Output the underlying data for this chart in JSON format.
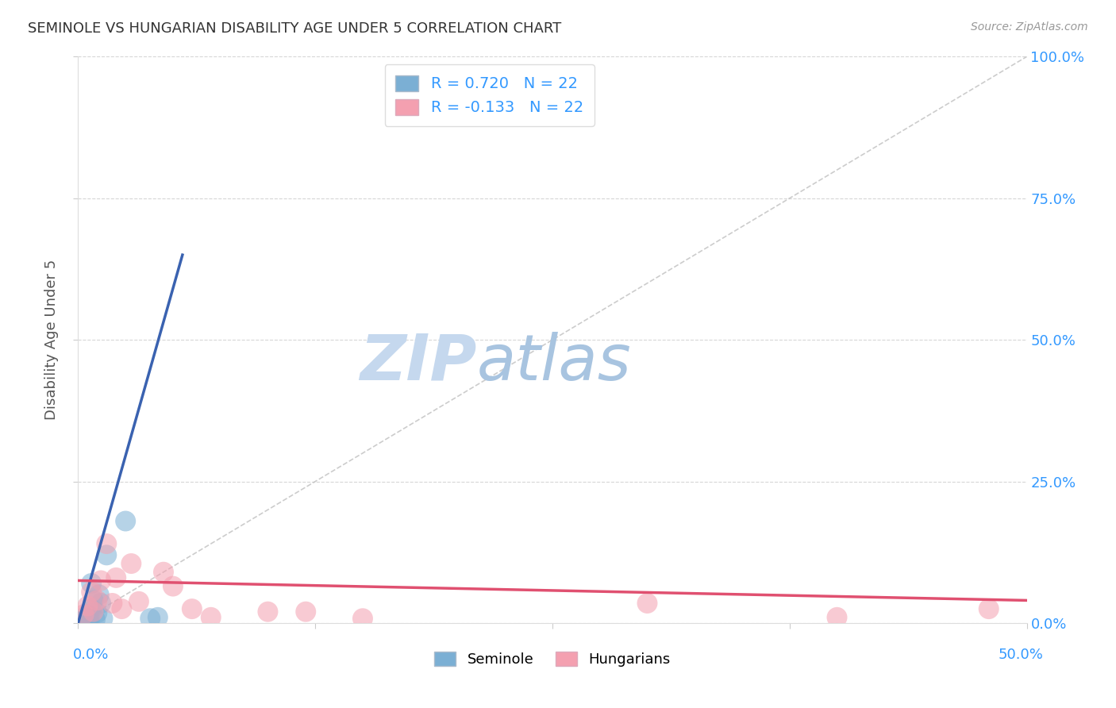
{
  "title": "SEMINOLE VS HUNGARIAN DISABILITY AGE UNDER 5 CORRELATION CHART",
  "source": "Source: ZipAtlas.com",
  "ylabel": "Disability Age Under 5",
  "ytick_values": [
    0,
    25,
    50,
    75,
    100
  ],
  "xlim": [
    0,
    50
  ],
  "ylim": [
    0,
    100
  ],
  "seminole_R": 0.72,
  "seminole_N": 22,
  "hungarian_R": -0.133,
  "hungarian_N": 22,
  "seminole_color": "#7BAFD4",
  "hungarian_color": "#F4A0B0",
  "seminole_line_color": "#3A62B0",
  "hungarian_line_color": "#E05070",
  "diagonal_color": "#C0C0C0",
  "background_color": "#FFFFFF",
  "grid_color": "#CCCCCC",
  "title_color": "#333333",
  "axis_label_color": "#3399FF",
  "watermark_zip_color": "#C8D8F0",
  "watermark_atlas_color": "#A8C8E8",
  "seminole_scatter_x": [
    0.2,
    0.3,
    0.4,
    0.5,
    0.5,
    0.6,
    0.7,
    0.8,
    0.9,
    1.0,
    1.1,
    1.2,
    1.3,
    0.3,
    0.4,
    0.5,
    0.6,
    0.7,
    1.5,
    2.5,
    3.8,
    4.2
  ],
  "seminole_scatter_y": [
    0.3,
    0.5,
    0.4,
    0.8,
    1.5,
    1.2,
    2.5,
    4.0,
    0.6,
    1.8,
    5.0,
    3.5,
    0.8,
    0.3,
    0.4,
    0.6,
    0.5,
    7.0,
    12.0,
    18.0,
    0.8,
    1.0
  ],
  "hungarian_scatter_x": [
    0.3,
    0.5,
    0.7,
    0.8,
    1.0,
    1.2,
    1.5,
    1.8,
    2.0,
    2.3,
    2.8,
    3.2,
    4.5,
    5.0,
    6.0,
    7.0,
    10.0,
    12.0,
    15.0,
    30.0,
    40.0,
    48.0
  ],
  "hungarian_scatter_y": [
    1.5,
    3.0,
    5.5,
    2.0,
    4.0,
    7.5,
    14.0,
    3.5,
    8.0,
    2.5,
    10.5,
    3.8,
    9.0,
    6.5,
    2.5,
    1.0,
    2.0,
    2.0,
    0.8,
    3.5,
    1.0,
    2.5
  ],
  "sem_line_x0": 0.0,
  "sem_line_y0": 0.0,
  "sem_line_x1": 5.5,
  "sem_line_y1": 65.0,
  "hun_line_x0": 0.0,
  "hun_line_y0": 7.5,
  "hun_line_x1": 50.0,
  "hun_line_y1": 4.0
}
